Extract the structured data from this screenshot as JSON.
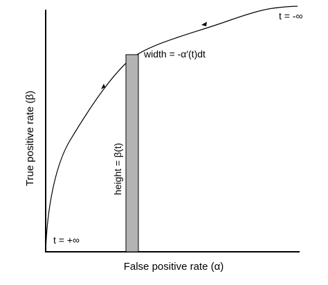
{
  "figure": {
    "ylabel": "True positive rate (β)",
    "xlabel": "False positive rate (α)",
    "label_t_neg_inf": "t = -∞",
    "label_t_pos_inf": "t = +∞",
    "label_width": "width = -α′(t)dt",
    "label_height": "height = β(t)",
    "colors": {
      "axis": "#000000",
      "curve": "#000000",
      "bar_fill": "#b3b3b3",
      "bar_stroke": "#000000"
    }
  }
}
